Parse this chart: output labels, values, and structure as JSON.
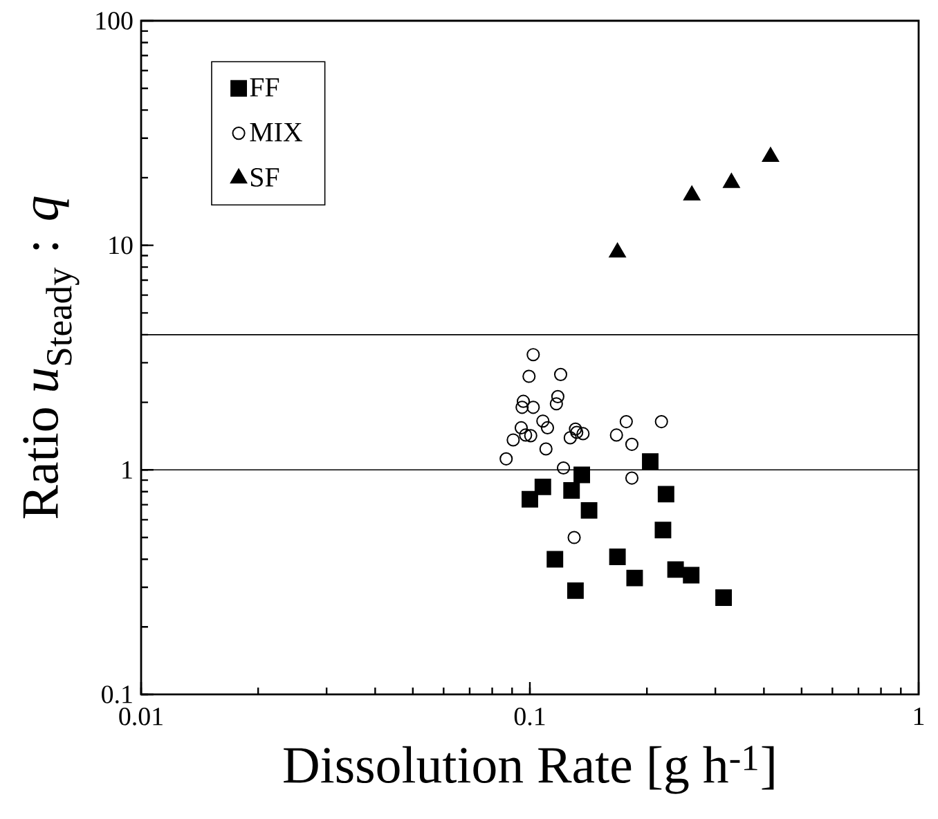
{
  "chart_data": {
    "type": "scatter",
    "xlabel": "Dissolution Rate [g h$^{-1}$]",
    "ylabel": "Ratio *u*$_{Steady}$ : *q*",
    "log": "xy",
    "xlim": [
      0.01,
      1
    ],
    "ylim": [
      0.1,
      100
    ],
    "xticks": [
      0.01,
      0.1,
      1
    ],
    "yticks": [
      0.1,
      1,
      10,
      100
    ],
    "grid": false,
    "legend": "top left",
    "ref_lines": [
      {
        "axis": "y",
        "value": 4
      },
      {
        "axis": "y",
        "value": 1
      }
    ],
    "series": [
      {
        "name": "FF",
        "color": "#000000",
        "marker": "square",
        "x": [
          0.1,
          0.108,
          0.128,
          0.136,
          0.142,
          0.116,
          0.131,
          0.204,
          0.224,
          0.22,
          0.168,
          0.186,
          0.237,
          0.26,
          0.315
        ],
        "values": [
          0.74,
          0.84,
          0.81,
          0.95,
          0.66,
          0.4,
          0.29,
          1.09,
          0.78,
          0.54,
          0.41,
          0.33,
          0.36,
          0.34,
          0.27
        ]
      },
      {
        "name": "MIX",
        "color": "#000000",
        "marker": "circle",
        "x": [
          0.102,
          0.0995,
          0.12,
          0.118,
          0.117,
          0.0962,
          0.0955,
          0.102,
          0.108,
          0.095,
          0.111,
          0.0975,
          0.1005,
          0.0906,
          0.0869,
          0.11,
          0.122,
          0.131,
          0.132,
          0.127,
          0.137,
          0.167,
          0.177,
          0.183,
          0.218,
          0.183,
          0.13
        ],
        "values": [
          3.26,
          2.61,
          2.66,
          2.12,
          1.97,
          2.02,
          1.9,
          1.9,
          1.65,
          1.54,
          1.54,
          1.43,
          1.42,
          1.36,
          1.12,
          1.24,
          1.02,
          1.52,
          1.47,
          1.39,
          1.45,
          1.43,
          1.64,
          1.3,
          1.64,
          0.92,
          0.5
        ]
      },
      {
        "name": "SF",
        "color": "#000000",
        "marker": "triangle",
        "x": [
          0.168,
          0.261,
          0.33,
          0.416
        ],
        "values": [
          9.3,
          16.7,
          19.0,
          24.8
        ]
      }
    ]
  }
}
